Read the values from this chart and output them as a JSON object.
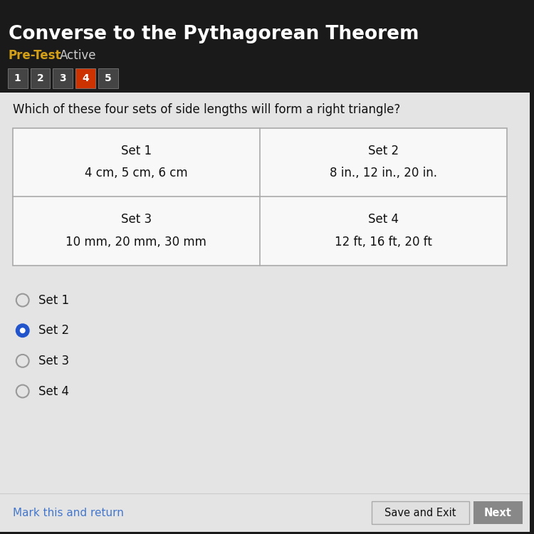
{
  "title": "Converse to the Pythagorean Theorem",
  "subtitle": "Pre-Test",
  "subtitle2": "Active",
  "nav_buttons": [
    "1",
    "2",
    "3",
    "4",
    "5"
  ],
  "active_button": 3,
  "question": "Which of these four sets of side lengths will form a right triangle?",
  "table": {
    "cells": [
      {
        "label": "Set 1",
        "value": "4 cm, 5 cm, 6 cm",
        "row": 0,
        "col": 0
      },
      {
        "label": "Set 2",
        "value": "8 in., 12 in., 20 in.",
        "row": 0,
        "col": 1
      },
      {
        "label": "Set 3",
        "value": "10 mm, 20 mm, 30 mm",
        "row": 1,
        "col": 0
      },
      {
        "label": "Set 4",
        "value": "12 ft, 16 ft, 20 ft",
        "row": 1,
        "col": 1
      }
    ]
  },
  "options": [
    "Set 1",
    "Set 2",
    "Set 3",
    "Set 4"
  ],
  "selected_option": 1,
  "bottom_left_link": "Mark this and return",
  "bottom_right_button1": "Save and Exit",
  "bottom_right_button2": "Next",
  "bg_dark": "#1a1a1a",
  "bg_light": "#e4e4e4",
  "bg_white": "#f8f8f8",
  "title_color": "#ffffff",
  "subtitle_color": "#d4a017",
  "active_btn_color": "#cc3300",
  "inactive_btn_color": "#444444",
  "radio_selected_color": "#2255cc",
  "link_color": "#4477cc",
  "next_btn_color": "#888888"
}
